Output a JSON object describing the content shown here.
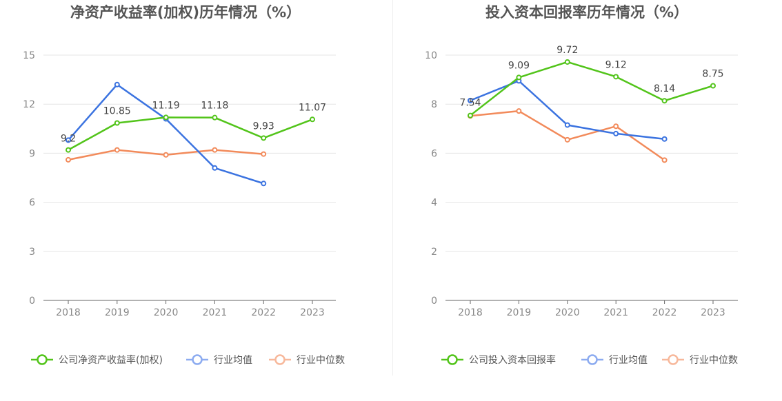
{
  "chart_data": [
    {
      "type": "line",
      "title": "净资产收益率(加权)历年情况（%）",
      "categories": [
        "2018",
        "2019",
        "2020",
        "2021",
        "2022",
        "2023"
      ],
      "ylim": [
        0,
        15
      ],
      "yticks": [
        0,
        3,
        6,
        9,
        12,
        15
      ],
      "grid": true,
      "legend_position": "bottom",
      "series": [
        {
          "name": "公司净资产收益率(加权)",
          "color": "#52c41a",
          "values": [
            9.2,
            10.85,
            11.19,
            11.18,
            9.93,
            11.07
          ],
          "labels": [
            "9.2",
            "10.85",
            "11.19",
            "11.18",
            "9.93",
            "11.07"
          ]
        },
        {
          "name": "行业均值",
          "color": "#3b73e0",
          "values": [
            9.8,
            13.2,
            11.1,
            8.1,
            7.15,
            null
          ]
        },
        {
          "name": "行业中位数",
          "color": "#f28a5a",
          "values": [
            8.6,
            9.2,
            8.9,
            9.2,
            8.95,
            null
          ]
        }
      ]
    },
    {
      "type": "line",
      "title": "投入资本回报率历年情况（%）",
      "categories": [
        "2018",
        "2019",
        "2020",
        "2021",
        "2022",
        "2023"
      ],
      "ylim": [
        0,
        10
      ],
      "yticks": [
        0,
        2,
        4,
        6,
        8,
        10
      ],
      "grid": true,
      "legend_position": "bottom",
      "series": [
        {
          "name": "公司投入资本回报率",
          "color": "#52c41a",
          "values": [
            7.54,
            9.09,
            9.72,
            9.12,
            8.14,
            8.75
          ],
          "labels": [
            "7.54",
            "9.09",
            "9.72",
            "9.12",
            "8.14",
            "8.75"
          ]
        },
        {
          "name": "行业均值",
          "color": "#3b73e0",
          "values": [
            8.15,
            8.95,
            7.15,
            6.8,
            6.58,
            null
          ]
        },
        {
          "name": "行业中位数",
          "color": "#f28a5a",
          "values": [
            7.52,
            7.72,
            6.55,
            7.1,
            5.72,
            null
          ]
        }
      ]
    }
  ]
}
